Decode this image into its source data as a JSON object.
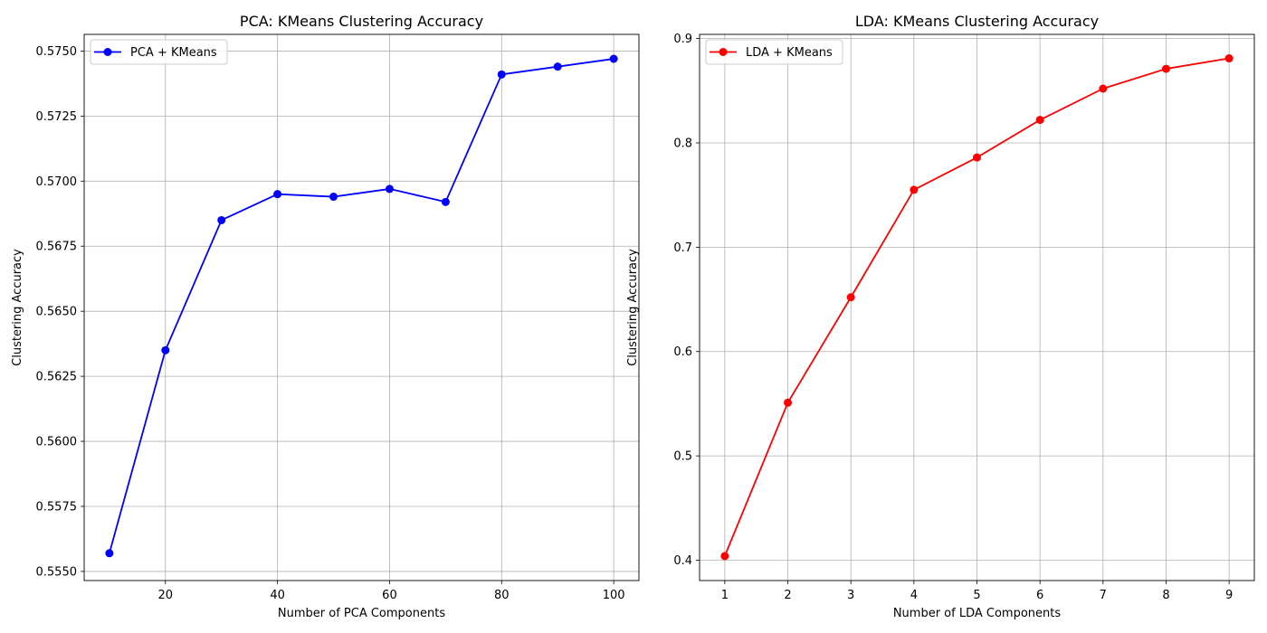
{
  "chart_data": [
    {
      "type": "line",
      "title": "PCA: KMeans Clustering Accuracy",
      "xlabel": "Number of PCA Components",
      "ylabel": "Clustering Accuracy",
      "x": [
        10,
        20,
        30,
        40,
        50,
        60,
        70,
        80,
        90,
        100
      ],
      "xlim": [
        5.5,
        104.5
      ],
      "ylim": [
        0.55465,
        0.57564
      ],
      "xticks": [
        20,
        40,
        60,
        80,
        100
      ],
      "xtick_labels": [
        "20",
        "40",
        "60",
        "80",
        "100"
      ],
      "yticks": [
        0.555,
        0.5575,
        0.56,
        0.5625,
        0.565,
        0.5675,
        0.57,
        0.5725,
        0.575
      ],
      "ytick_labels": [
        "0.5550",
        "0.5575",
        "0.5600",
        "0.5625",
        "0.5650",
        "0.5675",
        "0.5700",
        "0.5725",
        "0.5750"
      ],
      "grid": true,
      "legend_position": "upper left",
      "series": [
        {
          "name": "PCA + KMeans",
          "color": "#0000ff",
          "marker": "circle",
          "values": [
            0.5557,
            0.5635,
            0.5685,
            0.5695,
            0.5694,
            0.5697,
            0.5692,
            0.5741,
            0.5744,
            0.5747
          ]
        }
      ]
    },
    {
      "type": "line",
      "title": "LDA: KMeans Clustering Accuracy",
      "xlabel": "Number of LDA Components",
      "ylabel": "Clustering Accuracy",
      "x": [
        1,
        2,
        3,
        4,
        5,
        6,
        7,
        8,
        9
      ],
      "xlim": [
        0.6,
        9.4
      ],
      "ylim": [
        0.3805,
        0.904
      ],
      "xticks": [
        1,
        2,
        3,
        4,
        5,
        6,
        7,
        8,
        9
      ],
      "xtick_labels": [
        "1",
        "2",
        "3",
        "4",
        "5",
        "6",
        "7",
        "8",
        "9"
      ],
      "yticks": [
        0.4,
        0.5,
        0.6,
        0.7,
        0.8,
        0.9
      ],
      "ytick_labels": [
        "0.4",
        "0.5",
        "0.6",
        "0.7",
        "0.8",
        "0.9"
      ],
      "grid": true,
      "legend_position": "upper left",
      "series": [
        {
          "name": "LDA + KMeans",
          "color": "#ff0000",
          "marker": "circle",
          "values": [
            0.404,
            0.551,
            0.652,
            0.755,
            0.786,
            0.822,
            0.852,
            0.871,
            0.881
          ]
        }
      ]
    }
  ]
}
